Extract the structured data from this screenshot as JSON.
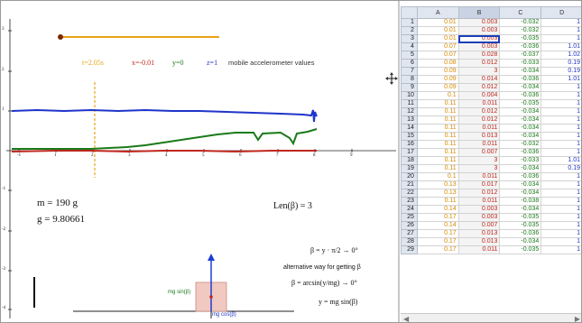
{
  "graphics": {
    "slider_label": "",
    "readout": {
      "t": "t=2.05s",
      "x": "x=-0.01",
      "y": "y=0",
      "z": "z=1",
      "caption": "mobile accelerometer values"
    },
    "mass_text": "m = 190 g",
    "gravity_text": "g = 9.80661",
    "len_text": "Len(β) = 3",
    "formula_1": "β = y · π/2 → 0°",
    "alt_text": "alternative way for getting β",
    "formula_2": "β = arcsin(y/mg) → 0°",
    "formula_3": "y = mg sin(β)",
    "force_label_left": "mg sin(β)",
    "force_label_bottom": "mg cos(β)",
    "y_ticks": [
      "3",
      "2",
      "1",
      "-1",
      "-2",
      "-3",
      "-4",
      "-5",
      "-6"
    ],
    "x_ticks": [
      "-1",
      "1",
      "2",
      "3",
      "4",
      "5",
      "6",
      "7",
      "8",
      "9"
    ],
    "colors": {
      "x_series": "#c0281f",
      "y_series": "#1a7a1a",
      "z_series": "#1f35c9",
      "t_marker": "#e8a317",
      "slider": "#e8a317",
      "box": "#e8b8b0",
      "arrow": "#1f3cd6"
    }
  },
  "spreadsheet": {
    "columns": [
      "A",
      "B",
      "C",
      "D"
    ],
    "active_cell": "B3",
    "rows": [
      {
        "n": "1",
        "a": "0.01",
        "b": "0.003",
        "c": "-0.032",
        "d": "1"
      },
      {
        "n": "2",
        "a": "0.01",
        "b": "0.003",
        "c": "-0.032",
        "d": "1"
      },
      {
        "n": "3",
        "a": "0.01",
        "b": "0.003",
        "c": "-0.035",
        "d": "1"
      },
      {
        "n": "4",
        "a": "0.07",
        "b": "0.003",
        "c": "-0.036",
        "d": "1.01"
      },
      {
        "n": "5",
        "a": "0.07",
        "b": "0.028",
        "c": "-0.037",
        "d": "1.02"
      },
      {
        "n": "6",
        "a": "0.08",
        "b": "0.012",
        "c": "-0.033",
        "d": "0.19"
      },
      {
        "n": "7",
        "a": "0.09",
        "b": "3",
        "c": "-0.034",
        "d": "0.19"
      },
      {
        "n": "8",
        "a": "0.09",
        "b": "0.014",
        "c": "-0.036",
        "d": "1.01"
      },
      {
        "n": "9",
        "a": "0.09",
        "b": "0.012",
        "c": "-0.034",
        "d": "1"
      },
      {
        "n": "10",
        "a": "0.1",
        "b": "0.004",
        "c": "-0.036",
        "d": "1"
      },
      {
        "n": "11",
        "a": "0.11",
        "b": "0.011",
        "c": "-0.035",
        "d": "1"
      },
      {
        "n": "12",
        "a": "0.11",
        "b": "0.012",
        "c": "-0.034",
        "d": "1"
      },
      {
        "n": "13",
        "a": "0.11",
        "b": "0.012",
        "c": "-0.034",
        "d": "1"
      },
      {
        "n": "14",
        "a": "0.11",
        "b": "0.011",
        "c": "-0.034",
        "d": "1"
      },
      {
        "n": "15",
        "a": "0.11",
        "b": "0.013",
        "c": "-0.034",
        "d": "1"
      },
      {
        "n": "16",
        "a": "0.11",
        "b": "0.011",
        "c": "-0.032",
        "d": "1"
      },
      {
        "n": "17",
        "a": "0.11",
        "b": "0.007",
        "c": "-0.036",
        "d": "1"
      },
      {
        "n": "18",
        "a": "0.11",
        "b": "3",
        "c": "-0.033",
        "d": "1.01"
      },
      {
        "n": "19",
        "a": "0.11",
        "b": "3",
        "c": "-0.034",
        "d": "0.19"
      },
      {
        "n": "20",
        "a": "0.1",
        "b": "0.011",
        "c": "-0.036",
        "d": "1"
      },
      {
        "n": "21",
        "a": "0.13",
        "b": "0.017",
        "c": "-0.034",
        "d": "1"
      },
      {
        "n": "22",
        "a": "0.13",
        "b": "0.012",
        "c": "-0.034",
        "d": "1"
      },
      {
        "n": "23",
        "a": "0.11",
        "b": "0.011",
        "c": "-0.038",
        "d": "1"
      },
      {
        "n": "24",
        "a": "0.14",
        "b": "0.003",
        "c": "-0.034",
        "d": "1"
      },
      {
        "n": "25",
        "a": "0.17",
        "b": "0.003",
        "c": "-0.035",
        "d": "1"
      },
      {
        "n": "26",
        "a": "0.14",
        "b": "0.007",
        "c": "-0.035",
        "d": "1"
      },
      {
        "n": "27",
        "a": "0.17",
        "b": "0.013",
        "c": "-0.036",
        "d": "1"
      },
      {
        "n": "28",
        "a": "0.17",
        "b": "0.013",
        "c": "-0.034",
        "d": "1"
      },
      {
        "n": "29",
        "a": "0.17",
        "b": "0.011",
        "c": "-0.035",
        "d": "1"
      }
    ]
  }
}
